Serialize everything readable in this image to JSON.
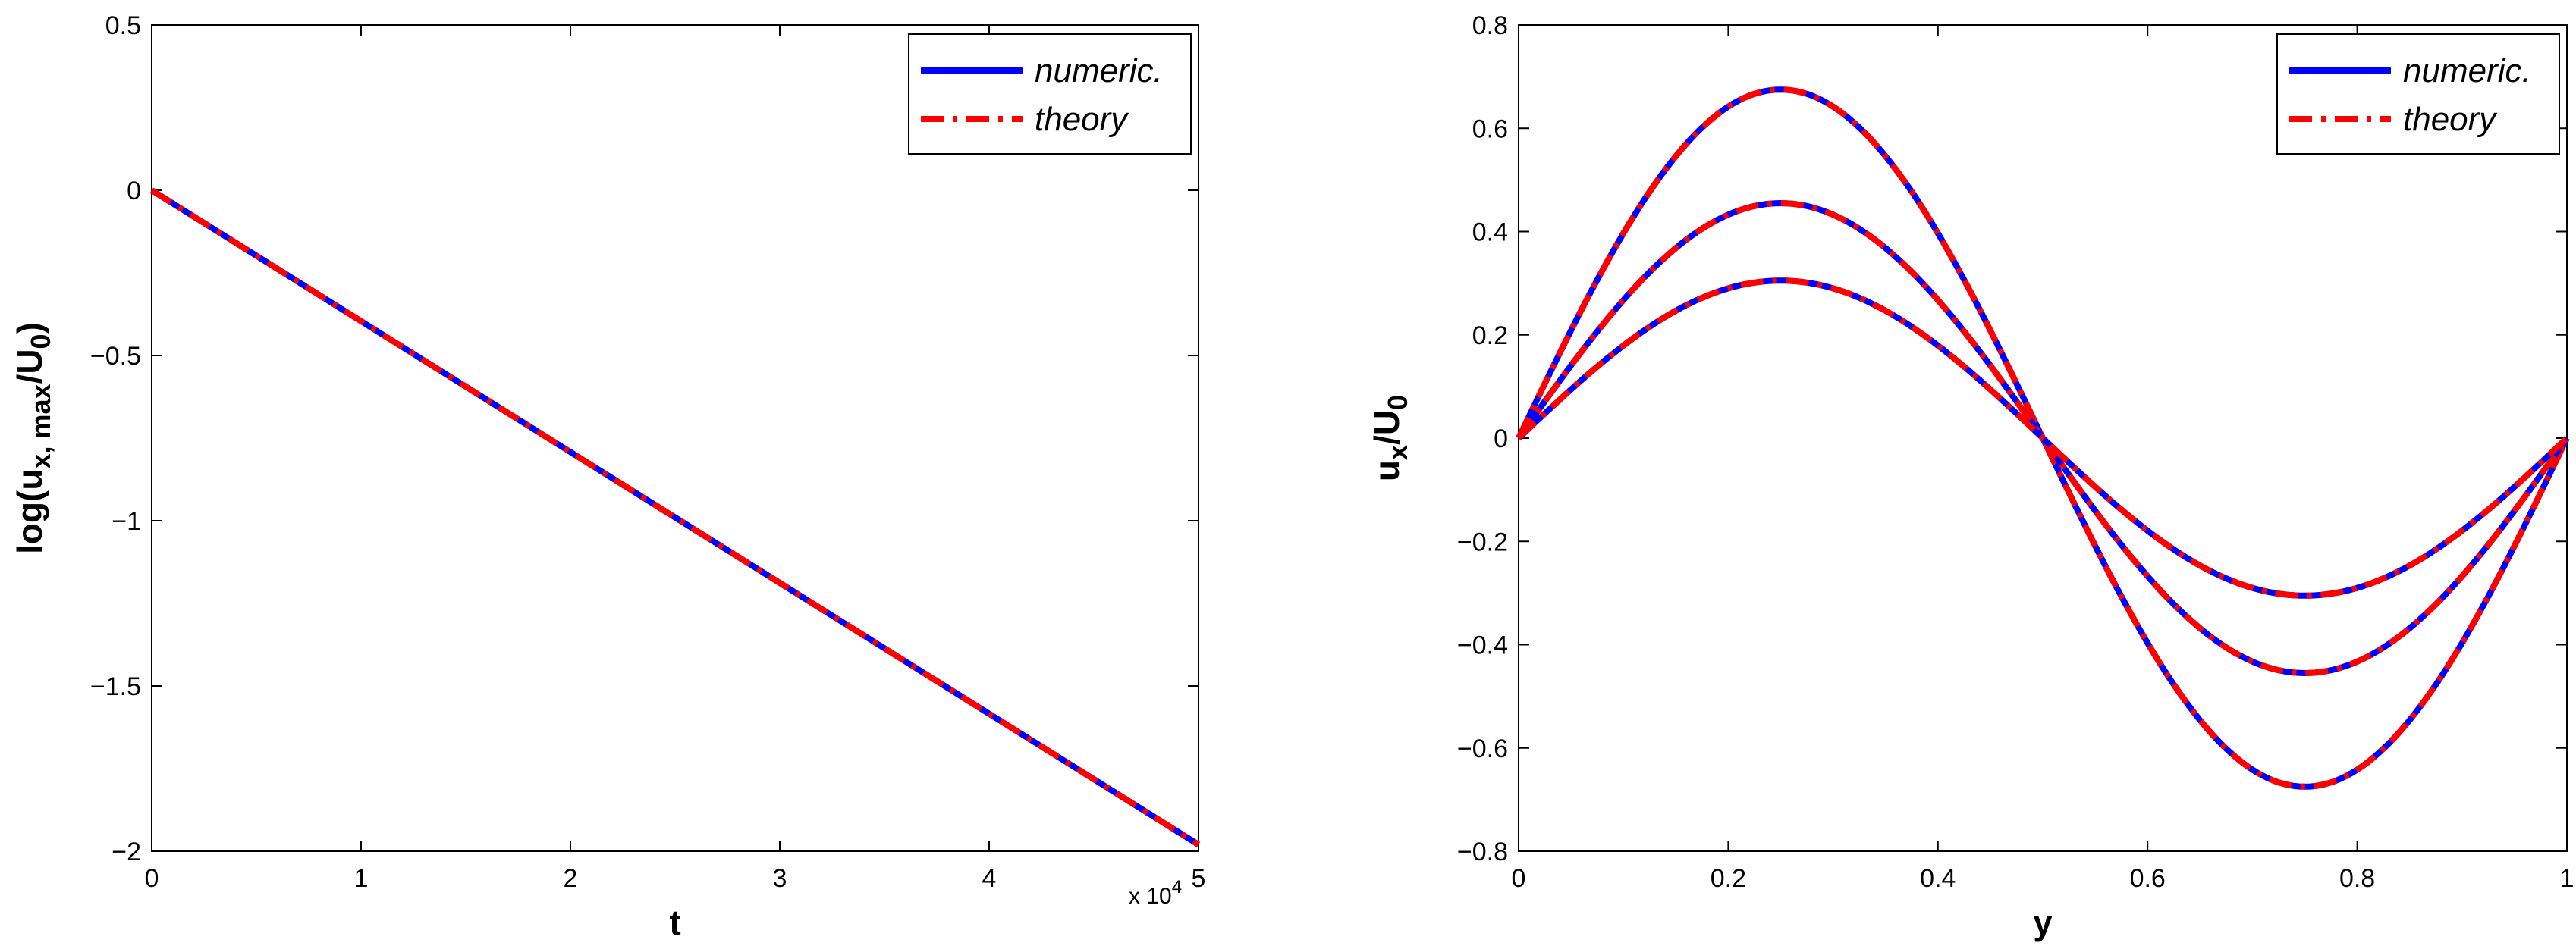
{
  "chart_data": [
    {
      "type": "line",
      "xlabel": "t",
      "ylabel": "log(u_{x, max}/U_0)",
      "ylabel_parts": {
        "main": "log(u",
        "sub1": "x, max",
        "mid": "/U",
        "sub2": "0",
        "end": ")"
      },
      "xlim": [
        0,
        50000
      ],
      "ylim": [
        -2,
        0.5
      ],
      "x_ticks": [
        0,
        10000,
        20000,
        30000,
        40000,
        50000
      ],
      "x_tick_labels": [
        "0",
        "1",
        "2",
        "3",
        "4",
        "5"
      ],
      "y_ticks": [
        -2,
        -1.5,
        -1,
        -0.5,
        0,
        0.5
      ],
      "y_tick_labels": [
        "−2",
        "−1.5",
        "−1",
        "−0.5",
        "0",
        "0.5"
      ],
      "x_multiplier": {
        "base": "x 10",
        "exponent": "4"
      },
      "legend": {
        "position": "top-right"
      },
      "series": [
        {
          "name": "numeric.",
          "style": "solid",
          "color": "#0000ff",
          "x": [
            0,
            50000
          ],
          "y": [
            0,
            -1.98
          ]
        },
        {
          "name": "theory",
          "style": "dash-dot",
          "color": "#ff0000",
          "x": [
            0,
            50000
          ],
          "y": [
            0,
            -1.98
          ]
        }
      ]
    },
    {
      "type": "line",
      "xlabel": "y",
      "ylabel": "u_x/U_0",
      "ylabel_parts": {
        "main": "u",
        "sub1": "x",
        "mid": "/U",
        "sub2": "0",
        "end": ""
      },
      "xlim": [
        0,
        1
      ],
      "ylim": [
        -0.8,
        0.8
      ],
      "x_ticks": [
        0,
        0.2,
        0.4,
        0.6,
        0.8,
        1
      ],
      "x_tick_labels": [
        "0",
        "0.2",
        "0.4",
        "0.6",
        "0.8",
        "1"
      ],
      "y_ticks": [
        -0.8,
        -0.6,
        -0.4,
        -0.2,
        0,
        0.2,
        0.4,
        0.6,
        0.8
      ],
      "y_tick_labels": [
        "−0.8",
        "−0.6",
        "−0.4",
        "−0.2",
        "0",
        "0.2",
        "0.4",
        "0.6",
        "0.8"
      ],
      "legend": {
        "position": "top-right"
      },
      "function": "amplitude * sin(2*pi*y)",
      "profiles": [
        {
          "amplitude": 0.675
        },
        {
          "amplitude": 0.455
        },
        {
          "amplitude": 0.305
        }
      ],
      "series": [
        {
          "name": "numeric.",
          "style": "solid",
          "color": "#0000ff"
        },
        {
          "name": "theory",
          "style": "dash-dot",
          "color": "#ff0000"
        }
      ]
    }
  ]
}
